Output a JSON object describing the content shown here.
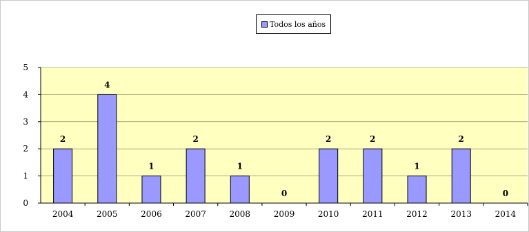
{
  "chart_data": {
    "type": "bar",
    "categories": [
      "2004",
      "2005",
      "2006",
      "2007",
      "2008",
      "2009",
      "2010",
      "2011",
      "2012",
      "2013",
      "2014"
    ],
    "series": [
      {
        "name": "Todos los años",
        "values": [
          2,
          4,
          1,
          2,
          1,
          0,
          2,
          2,
          1,
          2,
          0
        ],
        "color": "#9999ff"
      }
    ],
    "data_labels": [
      "2",
      "4",
      "1",
      "2",
      "1",
      "0",
      "2",
      "2",
      "1",
      "2",
      "0"
    ],
    "ylim": [
      0,
      5
    ],
    "yticks": [
      "0",
      "1",
      "2",
      "3",
      "4",
      "5"
    ],
    "grid": true,
    "legend_position": "top-center",
    "plot_background": "#ffffc0",
    "bar_color": "#9999ff"
  }
}
